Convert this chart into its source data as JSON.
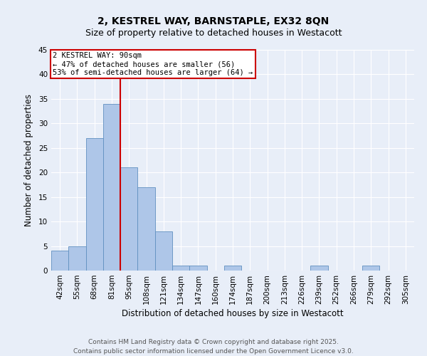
{
  "title_line1": "2, KESTREL WAY, BARNSTAPLE, EX32 8QN",
  "title_line2": "Size of property relative to detached houses in Westacott",
  "xlabel": "Distribution of detached houses by size in Westacott",
  "ylabel": "Number of detached properties",
  "categories": [
    "42sqm",
    "55sqm",
    "68sqm",
    "81sqm",
    "95sqm",
    "108sqm",
    "121sqm",
    "134sqm",
    "147sqm",
    "160sqm",
    "174sqm",
    "187sqm",
    "200sqm",
    "213sqm",
    "226sqm",
    "239sqm",
    "252sqm",
    "266sqm",
    "279sqm",
    "292sqm",
    "305sqm"
  ],
  "values": [
    4,
    5,
    27,
    34,
    21,
    17,
    8,
    1,
    1,
    0,
    1,
    0,
    0,
    0,
    0,
    1,
    0,
    0,
    1,
    0,
    0
  ],
  "bar_color": "#aec6e8",
  "bar_edge_color": "#6090c0",
  "red_line_color": "#cc0000",
  "red_line_x": 3.5,
  "annotation_text_line1": "2 KESTREL WAY: 90sqm",
  "annotation_text_line2": "← 47% of detached houses are smaller (56)",
  "annotation_text_line3": "53% of semi-detached houses are larger (64) →",
  "annotation_box_color": "#ffffff",
  "annotation_box_edge": "#cc0000",
  "ylim": [
    0,
    45
  ],
  "yticks": [
    0,
    5,
    10,
    15,
    20,
    25,
    30,
    35,
    40,
    45
  ],
  "footer_line1": "Contains HM Land Registry data © Crown copyright and database right 2025.",
  "footer_line2": "Contains public sector information licensed under the Open Government Licence v3.0.",
  "bg_color": "#e8eef8",
  "grid_color": "#ffffff",
  "title_fontsize": 10,
  "subtitle_fontsize": 9,
  "axis_label_fontsize": 8.5,
  "tick_fontsize": 7.5,
  "footer_fontsize": 6.5,
  "annotation_fontsize": 7.5
}
